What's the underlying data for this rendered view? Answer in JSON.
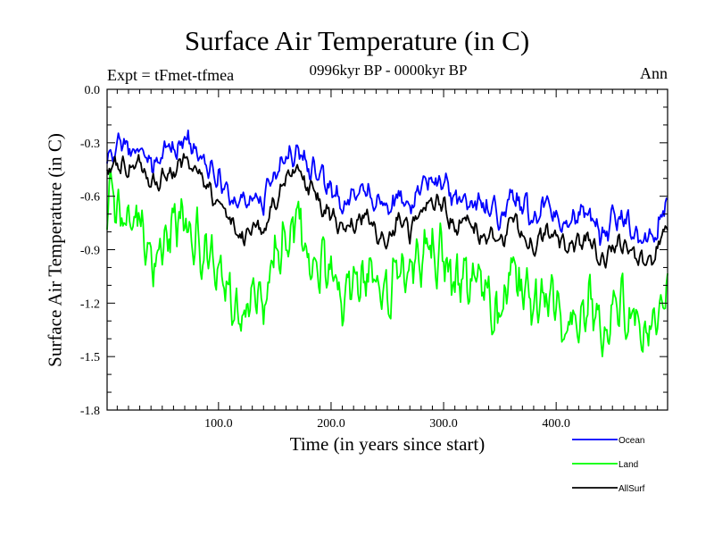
{
  "chart_data": {
    "type": "line",
    "title": "Surface Air Temperature (in C)",
    "subtitle": "0996kyr BP - 0000kyr BP",
    "expt_label": "Expt = tFmet-tfmea",
    "season_label": "Ann",
    "xlabel": "Time (in years since start)",
    "ylabel": "Surface Air Temperature (in C)",
    "xlim": [
      1,
      499
    ],
    "ylim": [
      -1.8,
      0.0
    ],
    "x_ticks": [
      100,
      200,
      300,
      400
    ],
    "x_tick_labels": [
      "100.0",
      "200.0",
      "300.0",
      "400.0"
    ],
    "y_ticks": [
      0.0,
      -0.3,
      -0.6,
      -0.9,
      -1.2,
      -1.5,
      -1.8
    ],
    "y_tick_labels": [
      "0.0",
      "-0.3",
      "-0.6",
      "-0.9",
      "-1.2",
      "-1.5",
      "-1.8"
    ],
    "legend_position": "bottom-right",
    "series": [
      {
        "name": "Ocean",
        "color": "#0000ff",
        "x": [
          1,
          10,
          20,
          30,
          40,
          50,
          60,
          70,
          80,
          90,
          100,
          110,
          120,
          130,
          140,
          150,
          160,
          170,
          180,
          190,
          200,
          210,
          220,
          230,
          240,
          250,
          260,
          270,
          280,
          290,
          300,
          310,
          320,
          330,
          340,
          350,
          360,
          370,
          380,
          390,
          400,
          410,
          420,
          430,
          440,
          450,
          460,
          470,
          480,
          490,
          499
        ],
        "values": [
          -0.36,
          -0.29,
          -0.35,
          -0.32,
          -0.42,
          -0.38,
          -0.33,
          -0.27,
          -0.36,
          -0.44,
          -0.47,
          -0.6,
          -0.66,
          -0.58,
          -0.64,
          -0.48,
          -0.38,
          -0.34,
          -0.42,
          -0.5,
          -0.56,
          -0.64,
          -0.6,
          -0.54,
          -0.64,
          -0.7,
          -0.58,
          -0.66,
          -0.54,
          -0.5,
          -0.52,
          -0.62,
          -0.59,
          -0.64,
          -0.68,
          -0.72,
          -0.6,
          -0.66,
          -0.72,
          -0.64,
          -0.68,
          -0.76,
          -0.72,
          -0.7,
          -0.82,
          -0.74,
          -0.72,
          -0.78,
          -0.84,
          -0.76,
          -0.62
        ]
      },
      {
        "name": "Land",
        "color": "#00ff00",
        "x": [
          1,
          10,
          20,
          30,
          40,
          50,
          60,
          70,
          80,
          90,
          100,
          110,
          120,
          130,
          140,
          150,
          160,
          170,
          180,
          190,
          200,
          210,
          220,
          230,
          240,
          250,
          260,
          270,
          280,
          290,
          300,
          310,
          320,
          330,
          340,
          350,
          360,
          370,
          380,
          390,
          400,
          410,
          420,
          430,
          440,
          450,
          460,
          470,
          480,
          490,
          499
        ],
        "values": [
          -0.62,
          -0.72,
          -0.7,
          -0.66,
          -0.92,
          -0.8,
          -0.74,
          -0.68,
          -0.82,
          -0.94,
          -1.02,
          -1.12,
          -1.24,
          -1.1,
          -1.14,
          -0.92,
          -0.74,
          -0.72,
          -0.9,
          -1.0,
          -1.02,
          -1.14,
          -1.06,
          -1.0,
          -1.1,
          -1.18,
          -1.0,
          -1.12,
          -0.96,
          -0.9,
          -0.94,
          -1.1,
          -1.08,
          -1.12,
          -1.16,
          -1.26,
          -1.04,
          -1.12,
          -1.24,
          -1.14,
          -1.18,
          -1.3,
          -1.22,
          -1.18,
          -1.34,
          -1.22,
          -1.18,
          -1.26,
          -1.36,
          -1.22,
          -1.14
        ]
      },
      {
        "name": "AllSurf",
        "color": "#000000",
        "x": [
          1,
          10,
          20,
          30,
          40,
          50,
          60,
          70,
          80,
          90,
          100,
          110,
          120,
          130,
          140,
          150,
          160,
          170,
          180,
          190,
          200,
          210,
          220,
          230,
          240,
          250,
          260,
          270,
          280,
          290,
          300,
          310,
          320,
          330,
          340,
          350,
          360,
          370,
          380,
          390,
          400,
          410,
          420,
          430,
          440,
          450,
          460,
          470,
          480,
          490,
          499
        ],
        "values": [
          -0.44,
          -0.42,
          -0.46,
          -0.42,
          -0.56,
          -0.5,
          -0.45,
          -0.39,
          -0.48,
          -0.58,
          -0.62,
          -0.75,
          -0.84,
          -0.74,
          -0.79,
          -0.62,
          -0.5,
          -0.46,
          -0.56,
          -0.65,
          -0.7,
          -0.79,
          -0.75,
          -0.68,
          -0.79,
          -0.85,
          -0.72,
          -0.81,
          -0.68,
          -0.63,
          -0.66,
          -0.77,
          -0.74,
          -0.8,
          -0.83,
          -0.88,
          -0.74,
          -0.81,
          -0.87,
          -0.79,
          -0.83,
          -0.92,
          -0.87,
          -0.85,
          -0.97,
          -0.88,
          -0.86,
          -0.93,
          -0.99,
          -0.9,
          -0.76
        ]
      }
    ]
  }
}
